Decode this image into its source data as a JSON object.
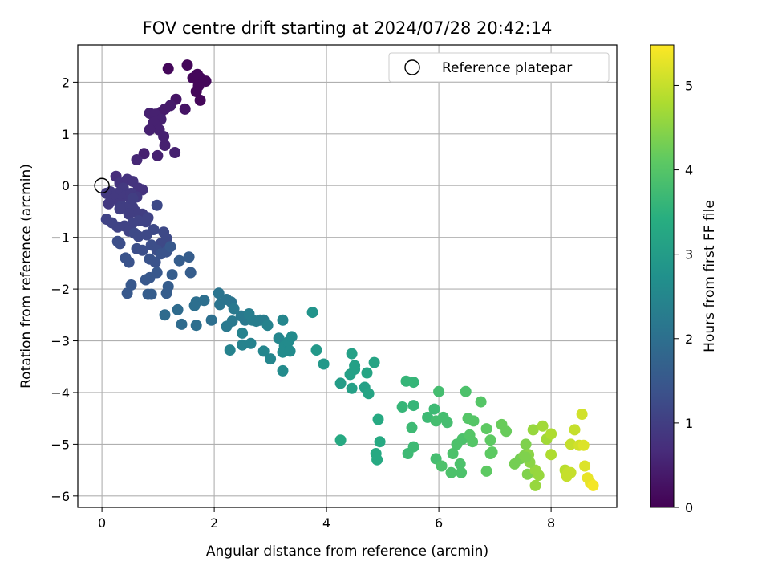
{
  "chart_data": {
    "type": "scatter",
    "title": "FOV centre drift starting at 2024/07/28 20:42:14",
    "xlabel": "Angular distance from reference (arcmin)",
    "ylabel": "Rotation from reference (arcmin)",
    "xlim": [
      -0.43,
      9.17
    ],
    "ylim": [
      -6.22,
      2.72
    ],
    "xticks": [
      0,
      2,
      4,
      6,
      8
    ],
    "yticks": [
      -6,
      -5,
      -4,
      -3,
      -2,
      -1,
      0,
      1,
      2
    ],
    "grid": true,
    "legend": {
      "placement": "top-right",
      "entries": [
        "Reference platepar"
      ]
    },
    "reference_point": {
      "x": 0,
      "y": 0,
      "marker": "open-circle",
      "label": "Reference platepar"
    },
    "colorbar": {
      "label": "Hours from first FF file",
      "colormap": "viridis",
      "range": [
        0,
        5.48
      ],
      "ticks": [
        0,
        1,
        2,
        3,
        4,
        5
      ]
    },
    "points": [
      [
        1.18,
        2.26,
        0.1
      ],
      [
        1.52,
        2.33,
        0.1
      ],
      [
        1.7,
        2.15,
        0.1
      ],
      [
        1.75,
        2.08,
        0.1
      ],
      [
        1.85,
        2.02,
        0.1
      ],
      [
        1.62,
        2.08,
        0.1
      ],
      [
        1.72,
        1.93,
        0.1
      ],
      [
        1.68,
        1.82,
        0.1
      ],
      [
        1.75,
        1.65,
        0.1
      ],
      [
        1.32,
        1.67,
        0.3
      ],
      [
        1.48,
        1.48,
        0.3
      ],
      [
        1.22,
        1.55,
        0.4
      ],
      [
        1.12,
        1.48,
        0.4
      ],
      [
        1.05,
        1.42,
        0.4
      ],
      [
        0.85,
        1.4,
        0.5
      ],
      [
        0.95,
        1.38,
        0.5
      ],
      [
        1.05,
        1.28,
        0.5
      ],
      [
        0.92,
        1.22,
        0.5
      ],
      [
        1.02,
        1.08,
        0.5
      ],
      [
        0.85,
        1.08,
        0.5
      ],
      [
        1.1,
        0.95,
        0.5
      ],
      [
        1.12,
        0.78,
        0.5
      ],
      [
        1.3,
        0.64,
        0.5
      ],
      [
        0.99,
        0.58,
        0.5
      ],
      [
        0.75,
        0.62,
        0.5
      ],
      [
        0.62,
        0.5,
        0.6
      ],
      [
        0.25,
        0.18,
        0.7
      ],
      [
        0.32,
        0.05,
        0.8
      ],
      [
        0.45,
        0.12,
        0.8
      ],
      [
        0.55,
        0.08,
        0.8
      ],
      [
        0.72,
        -0.08,
        0.8
      ],
      [
        0.65,
        -0.05,
        0.8
      ],
      [
        0.38,
        -0.05,
        0.9
      ],
      [
        0.28,
        -0.15,
        0.9
      ],
      [
        0.15,
        -0.12,
        0.9
      ],
      [
        0.08,
        -0.15,
        0.9
      ],
      [
        0.22,
        -0.25,
        0.9
      ],
      [
        0.42,
        -0.2,
        0.9
      ],
      [
        0.52,
        -0.15,
        0.9
      ],
      [
        0.62,
        -0.22,
        0.9
      ],
      [
        0.32,
        -0.35,
        0.9
      ],
      [
        0.35,
        -0.4,
        1.0
      ],
      [
        0.5,
        -0.38,
        1.0
      ],
      [
        0.55,
        -0.42,
        1.0
      ],
      [
        0.72,
        -0.55,
        1.0
      ],
      [
        0.6,
        -0.5,
        1.0
      ],
      [
        0.48,
        -0.55,
        1.0
      ],
      [
        0.82,
        -0.62,
        1.1
      ],
      [
        0.78,
        -0.7,
        1.1
      ],
      [
        0.65,
        -0.68,
        1.1
      ],
      [
        0.55,
        -0.72,
        1.1
      ],
      [
        0.4,
        -0.78,
        1.1
      ],
      [
        0.28,
        -0.8,
        1.1
      ],
      [
        0.18,
        -0.72,
        1.1
      ],
      [
        0.08,
        -0.65,
        1.1
      ],
      [
        0.48,
        -0.88,
        1.1
      ],
      [
        0.58,
        -0.92,
        1.2
      ],
      [
        0.65,
        -0.98,
        1.2
      ],
      [
        0.8,
        -0.95,
        1.2
      ],
      [
        0.92,
        -0.85,
        1.2
      ],
      [
        1.1,
        -0.9,
        1.2
      ],
      [
        1.15,
        -1.02,
        1.2
      ],
      [
        1.05,
        -1.12,
        1.2
      ],
      [
        0.88,
        -1.15,
        1.3
      ],
      [
        0.98,
        -1.25,
        1.3
      ],
      [
        0.28,
        -1.08,
        1.3
      ],
      [
        0.32,
        -1.12,
        1.3
      ],
      [
        0.62,
        -1.22,
        1.3
      ],
      [
        0.72,
        -1.25,
        1.3
      ],
      [
        0.85,
        -1.42,
        1.4
      ],
      [
        0.95,
        -1.48,
        1.4
      ],
      [
        0.42,
        -1.4,
        1.4
      ],
      [
        0.48,
        -1.48,
        1.4
      ],
      [
        1.05,
        -1.32,
        1.4
      ],
      [
        1.15,
        -1.28,
        1.4
      ],
      [
        0.98,
        -0.38,
        1.2
      ],
      [
        0.55,
        -0.25,
        1.0
      ],
      [
        0.98,
        -1.68,
        1.5
      ],
      [
        0.85,
        -1.78,
        1.5
      ],
      [
        0.78,
        -1.82,
        1.5
      ],
      [
        0.52,
        -1.92,
        1.5
      ],
      [
        1.25,
        -1.72,
        1.6
      ],
      [
        1.38,
        -1.45,
        1.6
      ],
      [
        1.55,
        -1.38,
        1.6
      ],
      [
        1.58,
        -1.68,
        1.6
      ],
      [
        1.18,
        -1.95,
        1.6
      ],
      [
        1.15,
        -2.08,
        1.6
      ],
      [
        0.45,
        -2.08,
        1.5
      ],
      [
        0.82,
        -2.1,
        1.6
      ],
      [
        0.88,
        -2.1,
        1.6
      ],
      [
        0.32,
        -0.45,
        1.0
      ],
      [
        0.12,
        -0.35,
        0.9
      ],
      [
        1.22,
        -1.18,
        1.5
      ],
      [
        1.12,
        -2.5,
        1.9
      ],
      [
        1.35,
        -2.4,
        1.9
      ],
      [
        1.42,
        -2.68,
        1.9
      ],
      [
        1.68,
        -2.7,
        2.0
      ],
      [
        1.65,
        -2.32,
        2.0
      ],
      [
        1.68,
        -2.25,
        2.0
      ],
      [
        1.82,
        -2.22,
        2.0
      ],
      [
        1.95,
        -2.6,
        2.0
      ],
      [
        2.08,
        -2.08,
        2.1
      ],
      [
        2.1,
        -2.3,
        2.1
      ],
      [
        2.22,
        -2.2,
        2.1
      ],
      [
        2.3,
        -2.25,
        2.1
      ],
      [
        2.35,
        -2.38,
        2.2
      ],
      [
        2.48,
        -2.52,
        2.2
      ],
      [
        2.55,
        -2.6,
        2.2
      ],
      [
        2.22,
        -2.72,
        2.2
      ],
      [
        2.32,
        -2.62,
        2.2
      ],
      [
        2.62,
        -2.48,
        2.3
      ],
      [
        2.68,
        -2.6,
        2.3
      ],
      [
        2.75,
        -2.62,
        2.3
      ],
      [
        2.82,
        -2.6,
        2.3
      ],
      [
        2.88,
        -2.6,
        2.3
      ],
      [
        2.95,
        -2.7,
        2.4
      ],
      [
        2.5,
        -2.85,
        2.4
      ],
      [
        2.5,
        -3.08,
        2.4
      ],
      [
        2.65,
        -3.05,
        2.4
      ],
      [
        2.28,
        -3.18,
        2.4
      ],
      [
        2.88,
        -3.2,
        2.5
      ],
      [
        3,
        -3.35,
        2.5
      ],
      [
        3.15,
        -2.95,
        2.5
      ],
      [
        3.22,
        -2.6,
        2.5
      ],
      [
        3.25,
        -3.1,
        2.6
      ],
      [
        3.22,
        -3.22,
        2.6
      ],
      [
        3.32,
        -3.02,
        2.6
      ],
      [
        3.38,
        -2.92,
        2.6
      ],
      [
        3.35,
        -3.2,
        2.6
      ],
      [
        3.22,
        -3.58,
        2.6
      ],
      [
        3.75,
        -2.45,
        2.8
      ],
      [
        3.82,
        -3.18,
        2.9
      ],
      [
        3.95,
        -3.45,
        2.9
      ],
      [
        4.25,
        -3.82,
        3.0
      ],
      [
        4.42,
        -3.65,
        3.1
      ],
      [
        4.45,
        -3.25,
        3.1
      ],
      [
        4.5,
        -3.48,
        3.1
      ],
      [
        4.5,
        -3.55,
        3.1
      ],
      [
        4.45,
        -3.92,
        3.1
      ],
      [
        4.68,
        -3.9,
        3.1
      ],
      [
        4.72,
        -3.62,
        3.2
      ],
      [
        4.85,
        -3.42,
        3.2
      ],
      [
        4.75,
        -4.02,
        3.2
      ],
      [
        4.92,
        -4.52,
        3.3
      ],
      [
        4.95,
        -4.95,
        3.3
      ],
      [
        4.88,
        -5.18,
        3.3
      ],
      [
        4.9,
        -5.3,
        3.3
      ],
      [
        4.25,
        -4.92,
        3.3
      ],
      [
        5.42,
        -3.78,
        3.6
      ],
      [
        5.55,
        -3.8,
        3.6
      ],
      [
        5.35,
        -4.28,
        3.6
      ],
      [
        5.55,
        -4.25,
        3.6
      ],
      [
        5.52,
        -4.68,
        3.7
      ],
      [
        5.55,
        -5.05,
        3.7
      ],
      [
        5.45,
        -5.18,
        3.7
      ],
      [
        5.8,
        -4.48,
        3.7
      ],
      [
        5.92,
        -4.32,
        3.7
      ],
      [
        5.95,
        -4.55,
        3.8
      ],
      [
        6.0,
        -3.98,
        3.8
      ],
      [
        6.08,
        -4.48,
        3.8
      ],
      [
        6.15,
        -4.58,
        3.8
      ],
      [
        5.95,
        -5.28,
        3.8
      ],
      [
        6.05,
        -5.42,
        3.9
      ],
      [
        6.22,
        -5.55,
        3.9
      ],
      [
        6.25,
        -5.18,
        3.9
      ],
      [
        6.32,
        -5.0,
        3.9
      ],
      [
        6.38,
        -5.38,
        3.9
      ],
      [
        6.42,
        -4.9,
        3.9
      ],
      [
        6.4,
        -5.55,
        3.9
      ],
      [
        6.48,
        -3.98,
        3.9
      ],
      [
        6.52,
        -4.5,
        4.0
      ],
      [
        6.55,
        -4.82,
        4.0
      ],
      [
        6.6,
        -4.95,
        4.0
      ],
      [
        6.62,
        -4.55,
        4.0
      ],
      [
        6.75,
        -4.18,
        4.0
      ],
      [
        6.85,
        -4.7,
        4.1
      ],
      [
        6.85,
        -5.52,
        4.1
      ],
      [
        6.92,
        -4.92,
        4.1
      ],
      [
        6.92,
        -5.18,
        4.1
      ],
      [
        6.95,
        -5.15,
        4.1
      ],
      [
        7.12,
        -4.62,
        4.2
      ],
      [
        7.2,
        -4.75,
        4.2
      ],
      [
        7.35,
        -5.38,
        4.3
      ],
      [
        7.45,
        -5.28,
        4.3
      ],
      [
        7.52,
        -5.22,
        4.4
      ],
      [
        7.55,
        -5.0,
        4.4
      ],
      [
        7.58,
        -5.58,
        4.4
      ],
      [
        7.6,
        -5.2,
        4.5
      ],
      [
        7.68,
        -4.72,
        4.6
      ],
      [
        7.72,
        -5.5,
        4.6
      ],
      [
        7.72,
        -5.8,
        4.6
      ],
      [
        7.78,
        -5.6,
        4.6
      ],
      [
        7.85,
        -4.65,
        4.7
      ],
      [
        7.92,
        -4.9,
        4.7
      ],
      [
        8.0,
        -4.8,
        4.8
      ],
      [
        8.0,
        -5.2,
        4.8
      ],
      [
        8.25,
        -5.5,
        4.9
      ],
      [
        8.28,
        -5.62,
        5.0
      ],
      [
        8.3,
        -5.55,
        5.0
      ],
      [
        8.35,
        -5.0,
        5.0
      ],
      [
        8.42,
        -4.72,
        5.0
      ],
      [
        8.5,
        -5.02,
        5.1
      ],
      [
        8.55,
        -4.42,
        5.1
      ],
      [
        8.58,
        -5.02,
        5.2
      ],
      [
        8.6,
        -5.42,
        5.2
      ],
      [
        8.65,
        -5.65,
        5.3
      ],
      [
        8.7,
        -5.75,
        5.3
      ],
      [
        8.75,
        -5.8,
        5.4
      ],
      [
        7.62,
        -5.35,
        4.5
      ],
      [
        7.55,
        -5.25,
        4.4
      ],
      [
        8.35,
        -5.55,
        5.0
      ]
    ]
  }
}
